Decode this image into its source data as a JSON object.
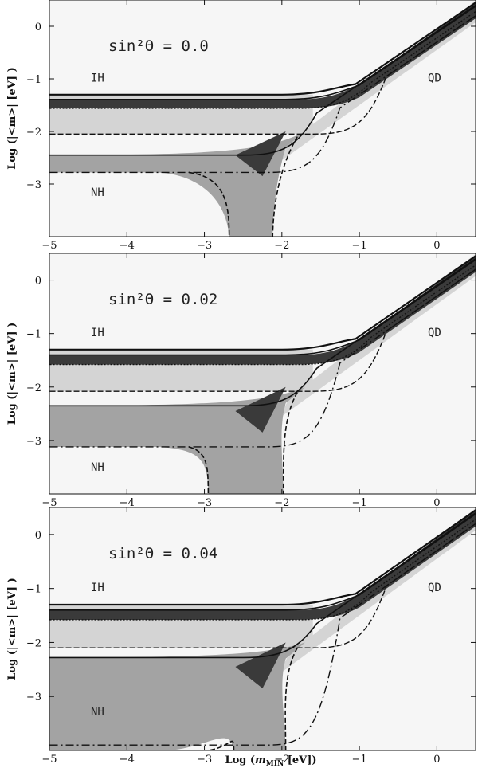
{
  "chart_data": [
    {
      "type": "area",
      "title": "sin²Θ = 0.0",
      "xlim": [
        -5,
        0.5
      ],
      "ylim": [
        -4,
        0.5
      ],
      "xticks": [
        -5,
        -4,
        -3,
        -2,
        -1,
        0
      ],
      "yticks": [
        0,
        -1,
        -2,
        -3
      ],
      "labels": {
        "ih": "IH",
        "nh": "NH",
        "qd": "QD"
      },
      "ih_band": [
        -2.05,
        -1.3
      ],
      "ih_dark_band": [
        -1.56,
        -1.39
      ],
      "nh_band": [
        -2.78,
        -2.45
      ],
      "nh_dip": {
        "x": [
          -2.68,
          -2.12
        ]
      },
      "qd_line_upper_at_x0": 0.3,
      "qd_line_lower_at_x0": -0.3
    },
    {
      "type": "area",
      "title": "sin²Θ = 0.02",
      "xlim": [
        -5,
        0.5
      ],
      "ylim": [
        -4,
        0.5
      ],
      "xticks": [
        -5,
        -4,
        -3,
        -2,
        -1,
        0
      ],
      "yticks": [
        0,
        -1,
        -2,
        -3
      ],
      "labels": {
        "ih": "IH",
        "nh": "NH",
        "qd": "QD"
      },
      "ih_band": [
        -2.08,
        -1.3
      ],
      "ih_dark_band": [
        -1.58,
        -1.4
      ],
      "nh_band": [
        -3.12,
        -2.35
      ],
      "nh_dip": {
        "x": [
          -2.95,
          -1.98
        ]
      },
      "qd_line_upper_at_x0": 0.3,
      "qd_line_lower_at_x0": -0.3
    },
    {
      "type": "area",
      "title": "sin²Θ = 0.04",
      "xlim": [
        -5,
        0.5
      ],
      "ylim": [
        -4,
        0.5
      ],
      "xticks": [
        -5,
        -4,
        -3,
        -2,
        -1,
        0
      ],
      "yticks": [
        0,
        -1,
        -2,
        -3
      ],
      "labels": {
        "ih": "IH",
        "nh": "NH",
        "qd": "QD"
      },
      "ih_band": [
        -2.1,
        -1.3
      ],
      "ih_dark_band": [
        -1.58,
        -1.4
      ],
      "nh_band": [
        -4.0,
        -2.28
      ],
      "nh_dip": {
        "x": [
          -2.62,
          -1.95
        ]
      },
      "qd_line_upper_at_x0": 0.3,
      "qd_line_lower_at_x0": -0.3
    }
  ],
  "axis_titles": {
    "y": "Log (|<m>| [eV] )",
    "x_prefix": "Log (",
    "x_var": "m",
    "x_sub": "MIN",
    "x_suffix": " [eV])"
  }
}
